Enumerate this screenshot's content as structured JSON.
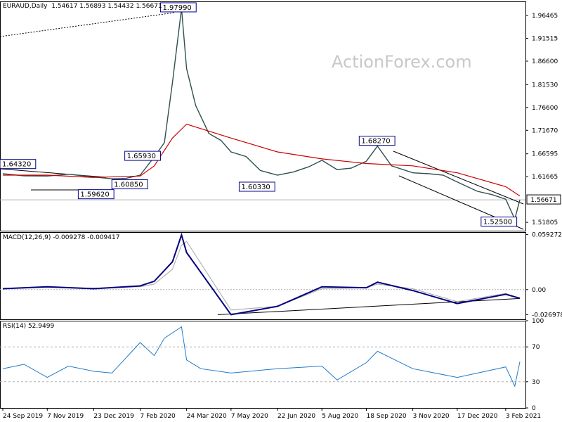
{
  "header": {
    "title": "EURAUD,Daily",
    "ohlc": "1.54617 1.56893 1.54432 1.56671"
  },
  "watermark": "ActionForex.com",
  "chart_data": [
    {
      "type": "line",
      "panel": "price",
      "title": "EURAUD,Daily",
      "ylim": [
        1.5,
        1.995
      ],
      "y_ticks": [
        "1.96465",
        "1.91515",
        "1.86600",
        "1.81530",
        "1.76600",
        "1.71670",
        "1.66595",
        "1.61665",
        "1.51805"
      ],
      "last_price_label": "1.56671",
      "x_ticks": [
        "24 Sep 2019",
        "7 Nov 2019",
        "23 Dec 2019",
        "7 Feb 2020",
        "24 Mar 2020",
        "7 May 2020",
        "22 Jun 2020",
        "5 Aug 2020",
        "18 Sep 2020",
        "3 Nov 2020",
        "17 Dec 2020",
        "3 Feb 2021"
      ],
      "series": [
        {
          "name": "",
          "color": "#2f4f4f",
          "x": [
            "24 Sep 2019",
            "15 Oct 2019",
            "7 Nov 2019",
            "28 Nov 2019",
            "23 Dec 2019",
            "10 Jan 2020",
            "24 Jan 2020",
            "7 Feb 2020",
            "21 Feb 2020",
            "2 Mar 2020",
            "10 Mar 2020",
            "19 Mar 2020",
            "24 Mar 2020",
            "2 Apr 2020",
            "15 Apr 2020",
            "27 Apr 2020",
            "7 May 2020",
            "22 May 2020",
            "5 Jun 2020",
            "22 Jun 2020",
            "8 Jul 2020",
            "23 Jul 2020",
            "5 Aug 2020",
            "20 Aug 2020",
            "3 Sep 2020",
            "18 Sep 2020",
            "29 Sep 2020",
            "13 Oct 2020",
            "3 Nov 2020",
            "19 Nov 2020",
            "3 Dec 2020",
            "17 Dec 2020",
            "6 Jan 2021",
            "20 Jan 2021",
            "3 Feb 2021",
            "12 Feb 2021",
            "17 Feb 2021"
          ],
          "values": [
            1.6232,
            1.6185,
            1.618,
            1.622,
            1.616,
            1.612,
            1.613,
            1.62,
            1.6593,
            1.69,
            1.82,
            1.9799,
            1.85,
            1.77,
            1.71,
            1.695,
            1.67,
            1.66,
            1.63,
            1.62,
            1.627,
            1.638,
            1.652,
            1.632,
            1.635,
            1.65,
            1.6827,
            1.64,
            1.625,
            1.623,
            1.62,
            1.605,
            1.585,
            1.578,
            1.568,
            1.525,
            1.5667
          ]
        },
        {
          "name": "",
          "color": "#cc0000",
          "x": [
            "24 Sep 2019",
            "7 Nov 2019",
            "23 Dec 2019",
            "7 Feb 2020",
            "21 Feb 2020",
            "10 Mar 2020",
            "24 Mar 2020",
            "7 May 2020",
            "22 Jun 2020",
            "5 Aug 2020",
            "18 Sep 2020",
            "3 Nov 2020",
            "17 Dec 2020",
            "3 Feb 2021",
            "17 Feb 2021"
          ],
          "values": [
            1.62,
            1.62,
            1.615,
            1.618,
            1.64,
            1.7,
            1.73,
            1.7,
            1.67,
            1.655,
            1.645,
            1.64,
            1.625,
            1.595,
            1.575
          ]
        }
      ],
      "annotations": [
        "1.97990",
        "1.65930",
        "1.60850",
        "1.59620",
        "1.60330",
        "1.68270",
        "1.52500",
        "1.64320"
      ]
    },
    {
      "type": "line",
      "panel": "macd",
      "title": "MACD(12,26,9) -0.009278 -0.009417",
      "ylim": [
        -0.032,
        0.062
      ],
      "y_ticks": [
        "0.059272",
        "0.00",
        "-0.026978"
      ],
      "series": [
        {
          "name": "",
          "color": "#000080",
          "x": [
            "24 Sep 2019",
            "7 Nov 2019",
            "23 Dec 2019",
            "7 Feb 2020",
            "21 Feb 2020",
            "10 Mar 2020",
            "19 Mar 2020",
            "24 Mar 2020",
            "7 May 2020",
            "22 Jun 2020",
            "5 Aug 2020",
            "18 Sep 2020",
            "29 Sep 2020",
            "3 Nov 2020",
            "17 Dec 2020",
            "3 Feb 2021",
            "17 Feb 2021"
          ],
          "values": [
            0.001,
            0.003,
            0.001,
            0.004,
            0.009,
            0.03,
            0.059,
            0.04,
            -0.027,
            -0.018,
            0.003,
            0.002,
            0.008,
            -0.001,
            -0.015,
            -0.005,
            -0.0093
          ]
        },
        {
          "name": "",
          "color": "#a8a8a8",
          "x": [
            "24 Sep 2019",
            "7 Nov 2019",
            "23 Dec 2019",
            "7 Feb 2020",
            "21 Feb 2020",
            "10 Mar 2020",
            "19 Mar 2020",
            "24 Mar 2020",
            "7 May 2020",
            "22 Jun 2020",
            "5 Aug 2020",
            "18 Sep 2020",
            "29 Sep 2020",
            "3 Nov 2020",
            "17 Dec 2020",
            "3 Feb 2021",
            "17 Feb 2021"
          ],
          "values": [
            0.001,
            0.0025,
            0.0015,
            0.003,
            0.006,
            0.022,
            0.048,
            0.052,
            -0.022,
            -0.018,
            0.001,
            0.002,
            0.006,
            0.001,
            -0.013,
            -0.004,
            -0.0094
          ]
        }
      ]
    },
    {
      "type": "line",
      "panel": "rsi",
      "title": "RSI(14) 52.9499",
      "ylim": [
        0,
        100
      ],
      "y_ticks": [
        "100",
        "70",
        "30",
        "0"
      ],
      "series": [
        {
          "name": "",
          "color": "#1f7ac9",
          "x": [
            "24 Sep 2019",
            "15 Oct 2019",
            "7 Nov 2019",
            "28 Nov 2019",
            "23 Dec 2019",
            "10 Jan 2020",
            "7 Feb 2020",
            "21 Feb 2020",
            "2 Mar 2020",
            "19 Mar 2020",
            "24 Mar 2020",
            "7 Apr 2020",
            "7 May 2020",
            "22 Jun 2020",
            "5 Aug 2020",
            "20 Aug 2020",
            "18 Sep 2020",
            "29 Sep 2020",
            "3 Nov 2020",
            "17 Dec 2020",
            "3 Feb 2021",
            "12 Feb 2021",
            "17 Feb 2021"
          ],
          "values": [
            45,
            50,
            35,
            48,
            42,
            40,
            75,
            60,
            80,
            93,
            55,
            45,
            40,
            45,
            48,
            32,
            52,
            65,
            45,
            35,
            47,
            25,
            53
          ]
        }
      ]
    }
  ]
}
